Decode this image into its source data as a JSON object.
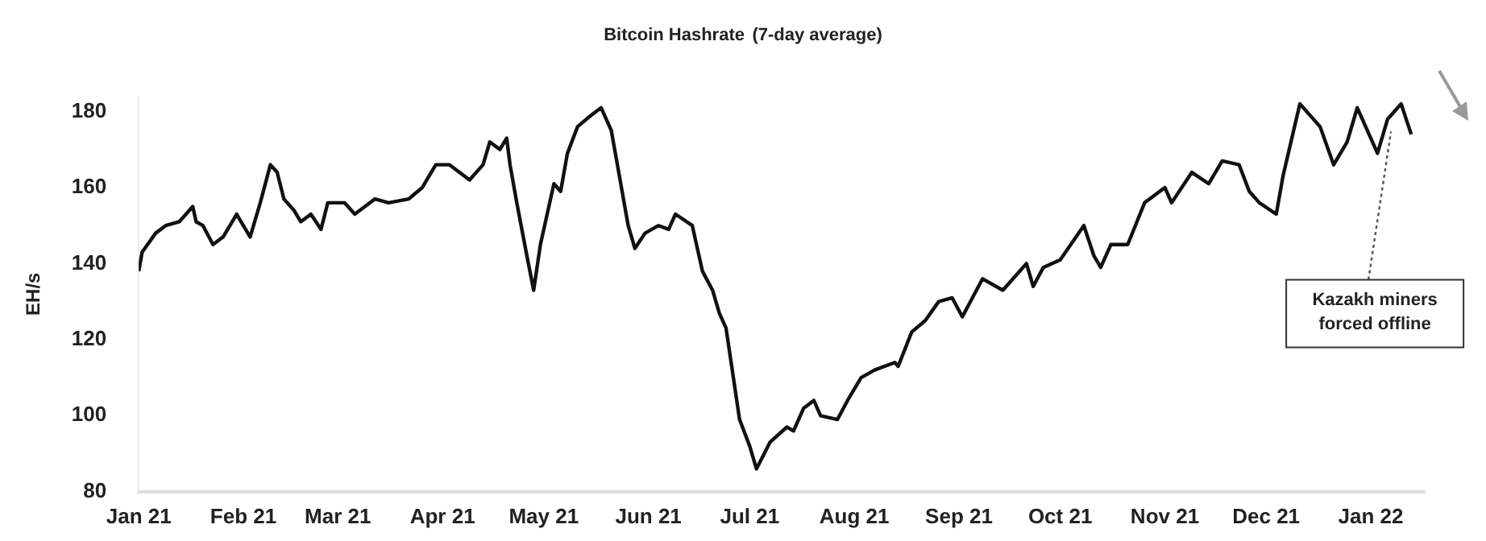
{
  "chart_data": {
    "type": "line",
    "title": "Bitcoin Hashrate",
    "subtitle": "(7-day average)",
    "ylabel": "EH/s",
    "x": [
      "2021-01-01",
      "2021-01-02",
      "2021-01-06",
      "2021-01-09",
      "2021-01-13",
      "2021-01-17",
      "2021-01-18",
      "2021-01-20",
      "2021-01-23",
      "2021-01-26",
      "2021-01-30",
      "2021-02-03",
      "2021-02-06",
      "2021-02-09",
      "2021-02-11",
      "2021-02-13",
      "2021-02-16",
      "2021-02-18",
      "2021-02-21",
      "2021-02-24",
      "2021-02-26",
      "2021-03-03",
      "2021-03-06",
      "2021-03-12",
      "2021-03-16",
      "2021-03-22",
      "2021-03-26",
      "2021-03-30",
      "2021-04-03",
      "2021-04-09",
      "2021-04-13",
      "2021-04-15",
      "2021-04-18",
      "2021-04-20",
      "2021-04-21",
      "2021-04-23",
      "2021-04-26",
      "2021-04-28",
      "2021-04-30",
      "2021-05-04",
      "2021-05-06",
      "2021-05-08",
      "2021-05-11",
      "2021-05-15",
      "2021-05-18",
      "2021-05-21",
      "2021-05-24",
      "2021-05-26",
      "2021-05-28",
      "2021-05-31",
      "2021-06-04",
      "2021-06-07",
      "2021-06-09",
      "2021-06-14",
      "2021-06-17",
      "2021-06-20",
      "2021-06-22",
      "2021-06-24",
      "2021-06-26",
      "2021-06-28",
      "2021-07-01",
      "2021-07-03",
      "2021-07-07",
      "2021-07-12",
      "2021-07-14",
      "2021-07-17",
      "2021-07-20",
      "2021-07-22",
      "2021-07-27",
      "2021-07-30",
      "2021-08-03",
      "2021-08-07",
      "2021-08-13",
      "2021-08-14",
      "2021-08-18",
      "2021-08-22",
      "2021-08-26",
      "2021-08-30",
      "2021-09-02",
      "2021-09-08",
      "2021-09-14",
      "2021-09-21",
      "2021-09-23",
      "2021-09-26",
      "2021-10-01",
      "2021-10-08",
      "2021-10-11",
      "2021-10-13",
      "2021-10-16",
      "2021-10-21",
      "2021-10-26",
      "2021-11-01",
      "2021-11-03",
      "2021-11-09",
      "2021-11-14",
      "2021-11-18",
      "2021-11-23",
      "2021-11-26",
      "2021-11-29",
      "2021-12-04",
      "2021-12-06",
      "2021-12-11",
      "2021-12-17",
      "2021-12-21",
      "2021-12-25",
      "2021-12-28",
      "2022-01-03",
      "2022-01-06",
      "2022-01-10",
      "2022-01-13"
    ],
    "series": [
      {
        "color": "#111111",
        "values": [
          138,
          143,
          148,
          150,
          151,
          155,
          151,
          150,
          145,
          147,
          153,
          147,
          156,
          166,
          164,
          157,
          154,
          151,
          153,
          149,
          156,
          156,
          153,
          157,
          156,
          157,
          160,
          166,
          166,
          162,
          166,
          172,
          170,
          173,
          166,
          156,
          142,
          133,
          145,
          161,
          159,
          169,
          176,
          179,
          181,
          175,
          160,
          150,
          144,
          148,
          150,
          149,
          153,
          150,
          138,
          133,
          127,
          123,
          111,
          99,
          92,
          86,
          93,
          97,
          96,
          102,
          104,
          100,
          99,
          104,
          110,
          112,
          114,
          113,
          122,
          125,
          130,
          131,
          126,
          136,
          133,
          140,
          134,
          139,
          141,
          150,
          142,
          139,
          145,
          145,
          156,
          160,
          156,
          164,
          161,
          167,
          166,
          159,
          156,
          153,
          163,
          182,
          176,
          166,
          172,
          181,
          169,
          178,
          182,
          174
        ]
      }
    ],
    "xlim": [
      "2021-01-01",
      "2022-01-17"
    ],
    "xticks": [
      {
        "value": "2021-01-01",
        "label": "Jan 21"
      },
      {
        "value": "2021-02-01",
        "label": "Feb 21"
      },
      {
        "value": "2021-03-01",
        "label": "Mar 21"
      },
      {
        "value": "2021-04-01",
        "label": "Apr 21"
      },
      {
        "value": "2021-05-01",
        "label": "May 21"
      },
      {
        "value": "2021-06-01",
        "label": "Jun 21"
      },
      {
        "value": "2021-07-01",
        "label": "Jul 21"
      },
      {
        "value": "2021-08-01",
        "label": "Aug 21"
      },
      {
        "value": "2021-09-01",
        "label": "Sep 21"
      },
      {
        "value": "2021-10-01",
        "label": "Oct 21"
      },
      {
        "value": "2021-11-01",
        "label": "Nov 21"
      },
      {
        "value": "2021-12-01",
        "label": "Dec 21"
      },
      {
        "value": "2022-01-01",
        "label": "Jan 22"
      }
    ],
    "ylim": [
      80,
      184
    ],
    "yticks": [
      80,
      100,
      120,
      140,
      160,
      180
    ],
    "grid": false,
    "legend": false,
    "marker": "none",
    "line_style": "solid",
    "annotations": [
      {
        "text": "Kazakh miners forced offline",
        "x": "2022-01-07",
        "y": 176
      }
    ]
  }
}
